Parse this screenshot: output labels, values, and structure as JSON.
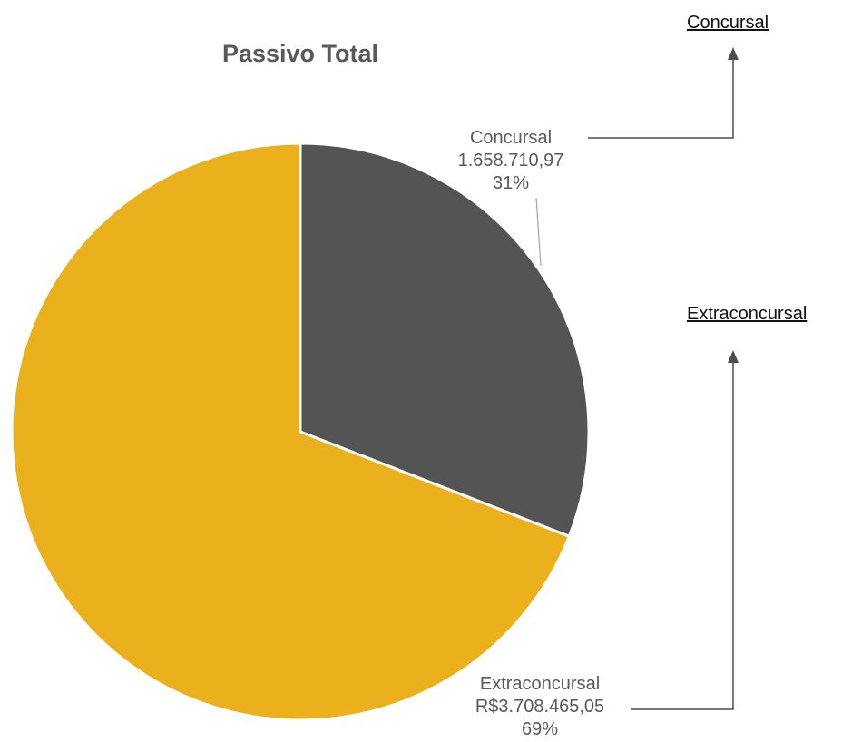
{
  "colors": {
    "concursal": "#545454",
    "extraconcursal": "#EBB11C",
    "title": "#595959",
    "label": "#595959",
    "leader": "#A6A6A6",
    "arrow": "#4D4D4D"
  },
  "links": {
    "concursal": "Concursal",
    "extraconcursal": "Extraconcursal"
  },
  "chart_data": {
    "type": "pie",
    "title": "Passivo Total",
    "categories": [
      "Concursal",
      "Extraconcursal"
    ],
    "values": [
      1658710.97,
      3708465.05
    ],
    "percent": [
      31,
      69
    ],
    "labels": [
      {
        "name": "Concursal",
        "value_text": "1.658.710,97",
        "percent_text": "31%"
      },
      {
        "name": "Extraconcursal",
        "value_text": "R$3.708.465,05",
        "percent_text": "69%"
      }
    ],
    "legend": "none"
  }
}
